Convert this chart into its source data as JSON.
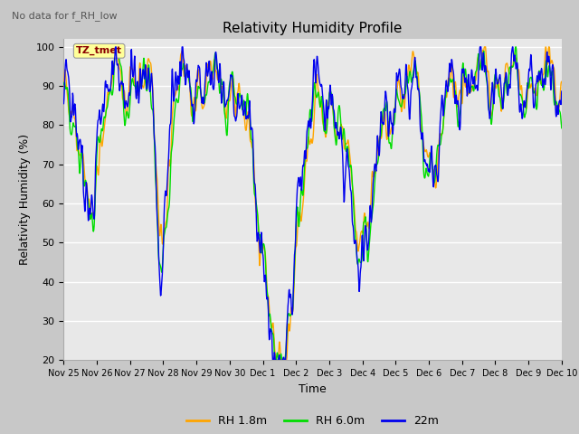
{
  "title": "Relativity Humidity Profile",
  "suptitle": "No data for f_RH_low",
  "xlabel": "Time",
  "ylabel": "Relativity Humidity (%)",
  "ylim": [
    20,
    102
  ],
  "yticks": [
    20,
    30,
    40,
    50,
    60,
    70,
    80,
    90,
    100
  ],
  "fig_bg_color": "#c8c8c8",
  "plot_bg_color": "#e8e8e8",
  "color_rh18": "#FFA500",
  "color_rh60": "#00DD00",
  "color_22m": "#0000EE",
  "legend_labels": [
    "RH 1.8m",
    "RH 6.0m",
    "22m"
  ],
  "annotation_text": "TZ_tmet",
  "annotation_color": "#8B0000",
  "annotation_bg": "#FFFF99",
  "n_points": 1440,
  "x_start": 0,
  "x_end": 15,
  "xtick_positions": [
    0,
    1,
    2,
    3,
    4,
    5,
    6,
    7,
    8,
    9,
    10,
    11,
    12,
    13,
    14,
    15
  ],
  "xtick_labels": [
    "Nov 25",
    "Nov 26",
    "Nov 27",
    "Nov 28",
    "Nov 29",
    "Nov 30",
    "Dec 1",
    "Dec 2",
    "Dec 3",
    "Dec 4",
    "Dec 5",
    "Dec 6",
    "Dec 7",
    "Dec 8",
    "Dec 9",
    "Dec 10"
  ]
}
